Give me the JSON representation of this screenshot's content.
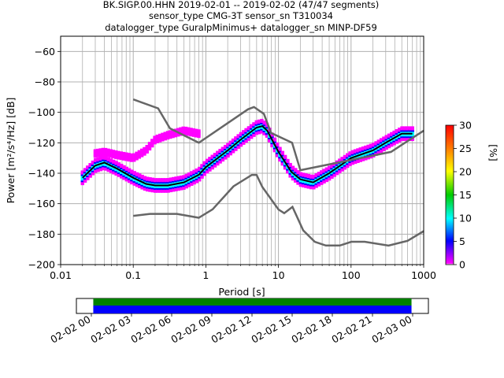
{
  "chart_data": {
    "type": "ppsd",
    "title_lines": [
      "BK.SIGP.00.HHN   2019-02-01 -- 2019-02-02  (47/47 segments)",
      "sensor_type CMG-3T sensor_sn T310034",
      "datalogger_type GuralpMinimus+ datalogger_sn MINP-DF59"
    ],
    "xlabel": "Period [s]",
    "ylabel": "Power [m²/s⁴/Hz] [dB]",
    "x_scale": "log",
    "xlim": [
      0.01,
      1000
    ],
    "ylim": [
      -200,
      -50
    ],
    "x_ticks": [
      {
        "v": 0.01,
        "label": "0.01"
      },
      {
        "v": 0.1,
        "label": "0.1"
      },
      {
        "v": 1,
        "label": "1"
      },
      {
        "v": 10,
        "label": "10"
      },
      {
        "v": 100,
        "label": "100"
      },
      {
        "v": 1000,
        "label": "1000"
      }
    ],
    "y_ticks": [
      {
        "v": -60,
        "label": "−60"
      },
      {
        "v": -80,
        "label": "−80"
      },
      {
        "v": -100,
        "label": "−100"
      },
      {
        "v": -120,
        "label": "−120"
      },
      {
        "v": -140,
        "label": "−140"
      },
      {
        "v": -160,
        "label": "−160"
      },
      {
        "v": -180,
        "label": "−180"
      },
      {
        "v": -200,
        "label": "−200"
      }
    ],
    "grid": true,
    "colorbar": {
      "label": "[%]",
      "range": [
        0,
        30
      ],
      "ticks": [
        {
          "v": 0,
          "label": "0"
        },
        {
          "v": 5,
          "label": "5"
        },
        {
          "v": 10,
          "label": "10"
        },
        {
          "v": 15,
          "label": "15"
        },
        {
          "v": 20,
          "label": "20"
        },
        {
          "v": 25,
          "label": "25"
        },
        {
          "v": 30,
          "label": "30"
        }
      ],
      "colors": [
        "#ffffff",
        "#ff00ff",
        "#0000ff",
        "#00ffff",
        "#00cc00",
        "#ffff00",
        "#ff7f00",
        "#ff0000"
      ]
    },
    "series": [
      {
        "name": "mode",
        "color": "#000000",
        "x": [
          0.02,
          0.03,
          0.04,
          0.06,
          0.1,
          0.15,
          0.2,
          0.3,
          0.5,
          0.8,
          1,
          2,
          3,
          5,
          6,
          7,
          10,
          15,
          20,
          30,
          50,
          100,
          200,
          300,
          500,
          700
        ],
        "y": [
          -143,
          -135,
          -133,
          -137,
          -143,
          -147,
          -148,
          -148,
          -146,
          -141,
          -136,
          -125,
          -118,
          -110,
          -109,
          -112,
          -126,
          -139,
          -144,
          -146,
          -140,
          -130,
          -125,
          -120,
          -114,
          -114
        ]
      },
      {
        "name": "nhnm",
        "color": "#666666",
        "x": [
          0.1,
          0.22,
          0.32,
          0.8,
          3.8,
          4.6,
          6.3,
          7.9,
          15.4,
          20,
          354.8,
          1000
        ],
        "y": [
          -91.5,
          -97.4,
          -110.5,
          -120,
          -98,
          -96.5,
          -101,
          -113.5,
          -120,
          -138,
          -126,
          -112
        ]
      },
      {
        "name": "nlnm",
        "color": "#666666",
        "x": [
          0.1,
          0.17,
          0.4,
          0.8,
          1.24,
          2.4,
          4.3,
          5,
          6,
          10,
          12,
          15.6,
          21.9,
          31.6,
          45,
          70,
          101,
          154,
          328,
          600,
          1000
        ],
        "y": [
          -168,
          -166.7,
          -166.7,
          -169.2,
          -163.7,
          -148.6,
          -141.1,
          -141.1,
          -149,
          -163.8,
          -166.2,
          -162.1,
          -177.5,
          -185,
          -187.5,
          -187.5,
          -185,
          -185,
          -187.5,
          -184.4,
          -178
        ]
      }
    ],
    "density_bands": [
      {
        "name": "main",
        "intensity": 12,
        "halfwidth_db": 4,
        "x": [
          0.02,
          0.03,
          0.04,
          0.06,
          0.1,
          0.15,
          0.2,
          0.3,
          0.5,
          0.8,
          1,
          2,
          3,
          5,
          6,
          7,
          10,
          15,
          20,
          30,
          50,
          100,
          200,
          300,
          500,
          700
        ],
        "y": [
          -143,
          -135,
          -133,
          -137,
          -143,
          -147,
          -148,
          -148,
          -146,
          -141,
          -136,
          -125,
          -118,
          -110,
          -109,
          -112,
          -126,
          -139,
          -144,
          -146,
          -140,
          -130,
          -125,
          -120,
          -114,
          -114
        ]
      },
      {
        "name": "upper_outliers",
        "intensity": 2,
        "halfwidth_db": 3,
        "x": [
          0.03,
          0.04,
          0.06,
          0.1,
          0.15,
          0.2,
          0.3,
          0.5,
          0.8
        ],
        "y": [
          -127,
          -126,
          -128,
          -130,
          -125,
          -118,
          -115,
          -112,
          -114
        ]
      }
    ],
    "timeline": {
      "tick_labels": [
        "02-02 00",
        "02-02 03",
        "02-02 06",
        "02-02 09",
        "02-02 12",
        "02-02 15",
        "02-02 18",
        "02-02 21",
        "02-03 00"
      ],
      "coverage_colors": [
        "#008000",
        "#0000ff"
      ],
      "coverage_fraction_start": 0.048,
      "coverage_fraction_end": 0.952
    }
  }
}
